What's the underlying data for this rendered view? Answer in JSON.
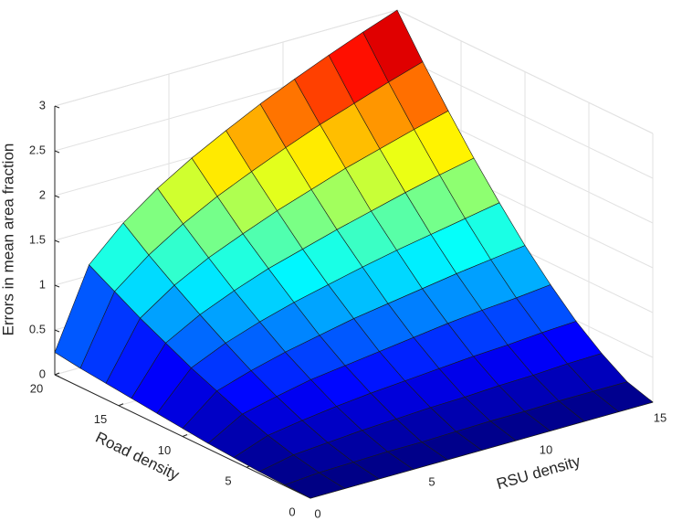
{
  "chart_data": {
    "type": "surface",
    "xlabel": "RSU density",
    "ylabel": "Road density",
    "zlabel": "Errors in mean area fraction",
    "x": [
      0,
      1.5,
      3,
      4.5,
      6,
      7.5,
      9,
      10.5,
      12,
      13.5,
      15
    ],
    "y": [
      0,
      2,
      4,
      6,
      8,
      10,
      12,
      14,
      16,
      18,
      20
    ],
    "z": [
      [
        0,
        0,
        0,
        0,
        0,
        0,
        0,
        0,
        0,
        0,
        0
      ],
      [
        0.01,
        0.04,
        0.05,
        0.06,
        0.06,
        0.07,
        0.08,
        0.08,
        0.09,
        0.09,
        0.09
      ],
      [
        0.02,
        0.1,
        0.13,
        0.16,
        0.18,
        0.2,
        0.21,
        0.23,
        0.24,
        0.26,
        0.27
      ],
      [
        0.04,
        0.18,
        0.24,
        0.29,
        0.33,
        0.36,
        0.39,
        0.42,
        0.44,
        0.47,
        0.49
      ],
      [
        0.06,
        0.28,
        0.37,
        0.45,
        0.5,
        0.55,
        0.6,
        0.65,
        0.69,
        0.72,
        0.76
      ],
      [
        0.09,
        0.4,
        0.52,
        0.62,
        0.7,
        0.78,
        0.84,
        0.9,
        0.96,
        1.01,
        1.06
      ],
      [
        0.12,
        0.52,
        0.69,
        0.82,
        0.93,
        1.02,
        1.11,
        1.19,
        1.26,
        1.33,
        1.4
      ],
      [
        0.15,
        0.66,
        0.87,
        1.03,
        1.17,
        1.28,
        1.39,
        1.49,
        1.59,
        1.68,
        1.76
      ],
      [
        0.18,
        0.8,
        1.06,
        1.26,
        1.42,
        1.57,
        1.7,
        1.83,
        1.94,
        2.05,
        2.15
      ],
      [
        0.21,
        0.96,
        1.26,
        1.5,
        1.7,
        1.87,
        2.03,
        2.18,
        2.31,
        2.44,
        2.56
      ],
      [
        0.25,
        1.12,
        1.48,
        1.76,
        1.99,
        2.19,
        2.38,
        2.55,
        2.71,
        2.86,
        3.0
      ]
    ],
    "xlim": [
      0,
      15
    ],
    "ylim": [
      0,
      20
    ],
    "zlim": [
      0,
      3
    ],
    "xticks": [
      0,
      5,
      10,
      15
    ],
    "yticks": [
      0,
      5,
      10,
      15,
      20
    ],
    "zticks": [
      0,
      0.5,
      1,
      1.5,
      2,
      2.5,
      3
    ],
    "colormap": "jet",
    "grid": true
  }
}
